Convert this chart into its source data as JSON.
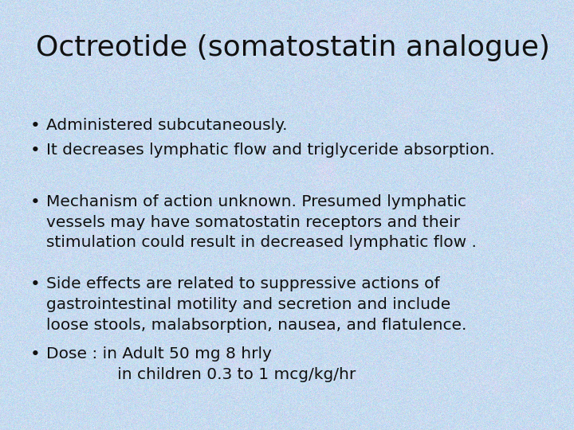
{
  "title": "Octreotide (somatostatin analogue)",
  "title_fontsize": 26,
  "title_color": "#111111",
  "bullet_points": [
    "Administered subcutaneously.",
    "It decreases lymphatic flow and triglyceride absorption.",
    "Mechanism of action unknown. Presumed lymphatic\nvessels may have somatostatin receptors and their\nstimulation could result in decreased lymphatic flow .",
    "Side effects are related to suppressive actions of\ngastrointestinal motility and secretion and include\nloose stools, malabsorption, nausea, and flatulence.",
    "Dose : in Adult 50 mg 8 hrly\n              in children 0.3 to 1 mcg/kg/hr"
  ],
  "bullet_fontsize": 14.5,
  "bullet_color": "#111111",
  "bullet_symbol": "•",
  "bg_base": [
    0.78,
    0.86,
    0.94
  ],
  "figsize": [
    7.2,
    5.4
  ],
  "dpi": 100
}
